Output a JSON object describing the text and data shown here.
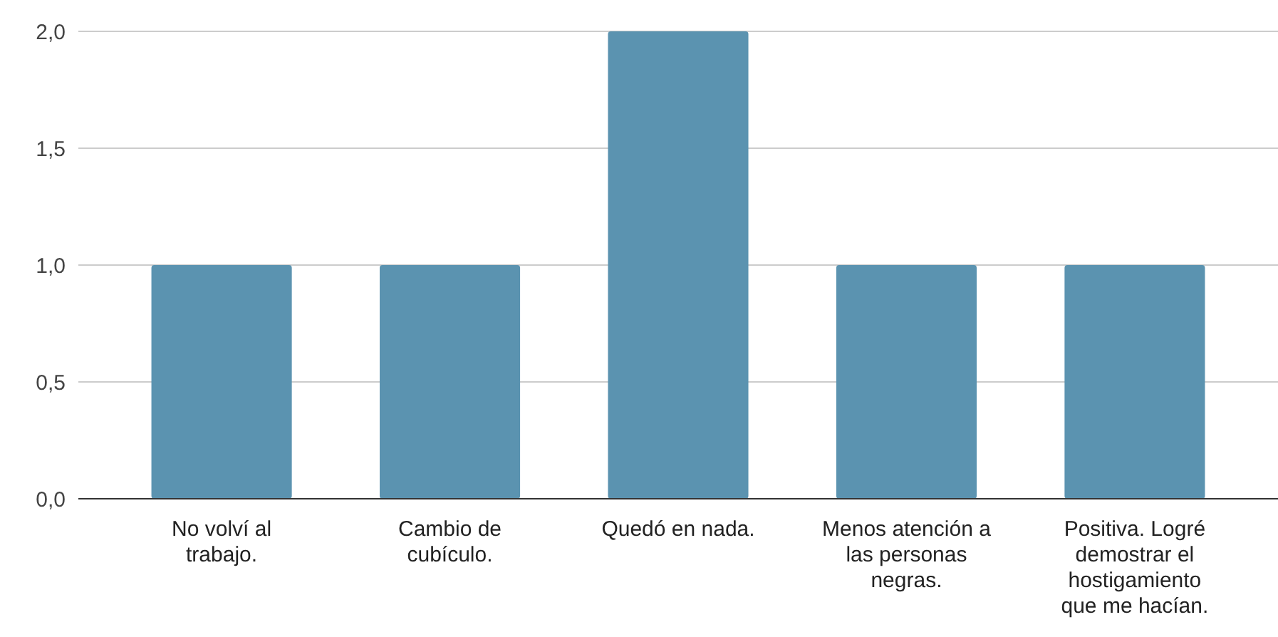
{
  "chart_data": {
    "type": "bar",
    "categories": [
      "No volví al trabajo.",
      "Cambio de cubículo.",
      "Quedó en nada.",
      "Menos atención a las personas negras.",
      "Positiva. Logré demostrar el hostigamiento que me hacían."
    ],
    "values": [
      1,
      1,
      2,
      1,
      1
    ],
    "color": "#5b93b0",
    "ylim": [
      0,
      2
    ],
    "yticks": [
      {
        "value": 0,
        "label": "0,0"
      },
      {
        "value": 0.5,
        "label": "0,5"
      },
      {
        "value": 1,
        "label": "1,0"
      },
      {
        "value": 1.5,
        "label": "1,5"
      },
      {
        "value": 2,
        "label": "2,0"
      }
    ],
    "grid": "y"
  }
}
